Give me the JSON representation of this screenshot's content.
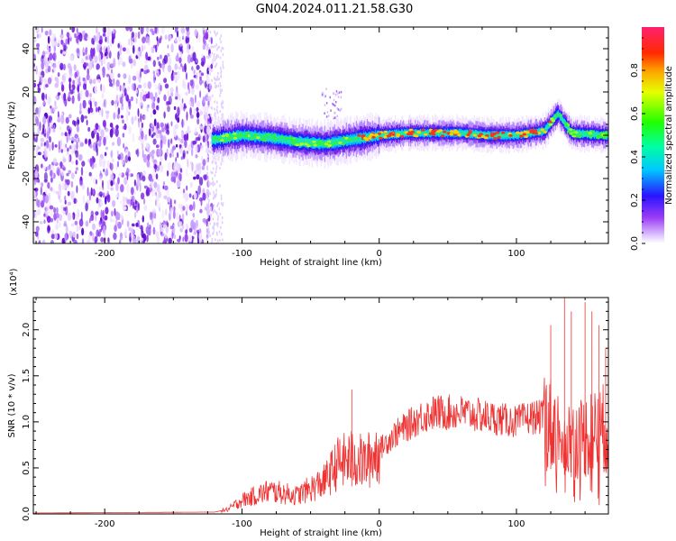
{
  "title": "GN04.2024.011.21.58.G30",
  "colors": {
    "snr_line": "#ee3333",
    "spectrogram_low": "#8a2be2",
    "axis": "#000000"
  },
  "chart_data": [
    {
      "type": "heatmap",
      "name": "spectrogram",
      "xlabel": "Height of straight line (km)",
      "ylabel": "Frequency (Hz)",
      "xlim": [
        -252,
        167
      ],
      "ylim": [
        -50,
        50
      ],
      "x_ticks": [
        -200,
        -100,
        0,
        100
      ],
      "x_tick_labels": [
        "-200",
        "-100",
        "0",
        "100"
      ],
      "y_ticks": [
        -40,
        -20,
        0,
        20,
        40
      ],
      "y_tick_labels": [
        "-40",
        "-20",
        "0",
        "20",
        "40"
      ],
      "colorbar": {
        "label": "Normalized spectral amplitude",
        "range": [
          0,
          1
        ],
        "ticks": [
          0.0,
          0.2,
          0.4,
          0.6,
          0.8
        ],
        "tick_labels": [
          "0.0",
          "0.2",
          "0.4",
          "0.6",
          "0.8"
        ],
        "colormap": "rainbow (white-violet-blue-cyan-green-yellow-red-magenta)"
      },
      "features": {
        "noise_region_x": [
          -252,
          -122
        ],
        "signal_band_x": [
          -122,
          167
        ],
        "signal_center_freq_hz": [
          [
            -120,
            -2
          ],
          [
            -100,
            0
          ],
          [
            -80,
            -1
          ],
          [
            -60,
            -3
          ],
          [
            -40,
            -4
          ],
          [
            -20,
            -2
          ],
          [
            0,
            0
          ],
          [
            20,
            1
          ],
          [
            40,
            1
          ],
          [
            60,
            1
          ],
          [
            80,
            0
          ],
          [
            100,
            0
          ],
          [
            120,
            2
          ],
          [
            130,
            10
          ],
          [
            140,
            1
          ],
          [
            165,
            0
          ]
        ]
      }
    },
    {
      "type": "line",
      "name": "snr",
      "xlabel": "Height of straight line (km)",
      "ylabel": "SNR (10 * v/v)",
      "y_multiplier_label": "(x10⁴)",
      "xlim": [
        -252,
        167
      ],
      "ylim": [
        0,
        2.35
      ],
      "x_ticks": [
        -200,
        -100,
        0,
        100
      ],
      "x_tick_labels": [
        "-200",
        "-100",
        "0",
        "100"
      ],
      "y_ticks": [
        0.0,
        0.5,
        1.0,
        1.5,
        2.0
      ],
      "y_tick_labels": [
        "0.0",
        "0.5",
        "1.0",
        "1.5",
        "2.0"
      ],
      "envelope": [
        [
          -252,
          0.01
        ],
        [
          -120,
          0.02
        ],
        [
          -110,
          0.05
        ],
        [
          -100,
          0.15
        ],
        [
          -80,
          0.25
        ],
        [
          -60,
          0.2
        ],
        [
          -40,
          0.35
        ],
        [
          -30,
          0.55
        ],
        [
          -20,
          0.6
        ],
        [
          -10,
          0.55
        ],
        [
          0,
          0.7
        ],
        [
          10,
          0.85
        ],
        [
          20,
          0.95
        ],
        [
          30,
          1.05
        ],
        [
          40,
          1.1
        ],
        [
          60,
          1.1
        ],
        [
          80,
          1.05
        ],
        [
          100,
          1.0
        ],
        [
          110,
          1.05
        ],
        [
          120,
          1.05
        ],
        [
          130,
          0.9
        ],
        [
          140,
          0.8
        ],
        [
          150,
          0.85
        ],
        [
          160,
          0.9
        ],
        [
          167,
          0.95
        ]
      ],
      "spikes": [
        [
          -20,
          1.35
        ],
        [
          125,
          2.05
        ],
        [
          135,
          2.35
        ],
        [
          140,
          2.2
        ],
        [
          150,
          2.3
        ],
        [
          155,
          2.2
        ],
        [
          160,
          2.05
        ],
        [
          165,
          1.8
        ]
      ]
    }
  ]
}
